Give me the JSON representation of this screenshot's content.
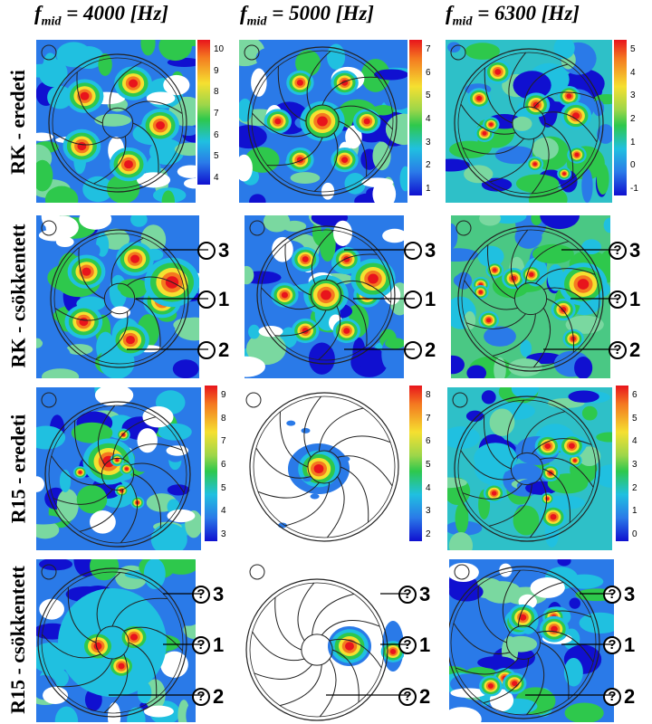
{
  "headers": [
    {
      "f": "f",
      "sub": "mid",
      "rest": " = 4000 [Hz]"
    },
    {
      "f": "f",
      "sub": "mid",
      "rest": " = 5000 [Hz]"
    },
    {
      "f": "f",
      "sub": "mid",
      "rest": " = 6300 [Hz]"
    }
  ],
  "rows": [
    "RK - eredeti",
    "RK - csökkentett",
    "R15 - eredeti",
    "R15 - csökkentett"
  ],
  "colorbars": {
    "rk_4000": [
      "10",
      "9",
      "8",
      "7",
      "6",
      "5",
      "4"
    ],
    "rk_5000": [
      "7",
      "6",
      "5",
      "4",
      "3",
      "2",
      "1"
    ],
    "rk_6300": [
      "5",
      "4",
      "3",
      "2",
      "1",
      "0",
      "-1"
    ],
    "r15_4000": [
      "9",
      "8",
      "7",
      "6",
      "5",
      "4",
      "3"
    ],
    "r15_5000": [
      "8",
      "7",
      "6",
      "5",
      "4",
      "3",
      "2"
    ],
    "r15_6300": [
      "6",
      "5",
      "4",
      "3",
      "2",
      "1",
      "0"
    ]
  },
  "callouts": {
    "rk_4000": [
      "3",
      "1",
      "2"
    ],
    "rk_5000": [
      "3",
      "1",
      "2"
    ],
    "rk_6300": [
      "?",
      "?",
      "?"
    ],
    "r15": [
      "?",
      "?",
      "?"
    ],
    "labels": [
      "3",
      "1",
      "2"
    ]
  },
  "colors": {
    "red": "#e8141c",
    "orange": "#f47920",
    "yellow": "#f5e030",
    "green": "#2ec84c",
    "cyan": "#20c0e0",
    "blue": "#2a7ae8",
    "navy": "#1010d0"
  }
}
